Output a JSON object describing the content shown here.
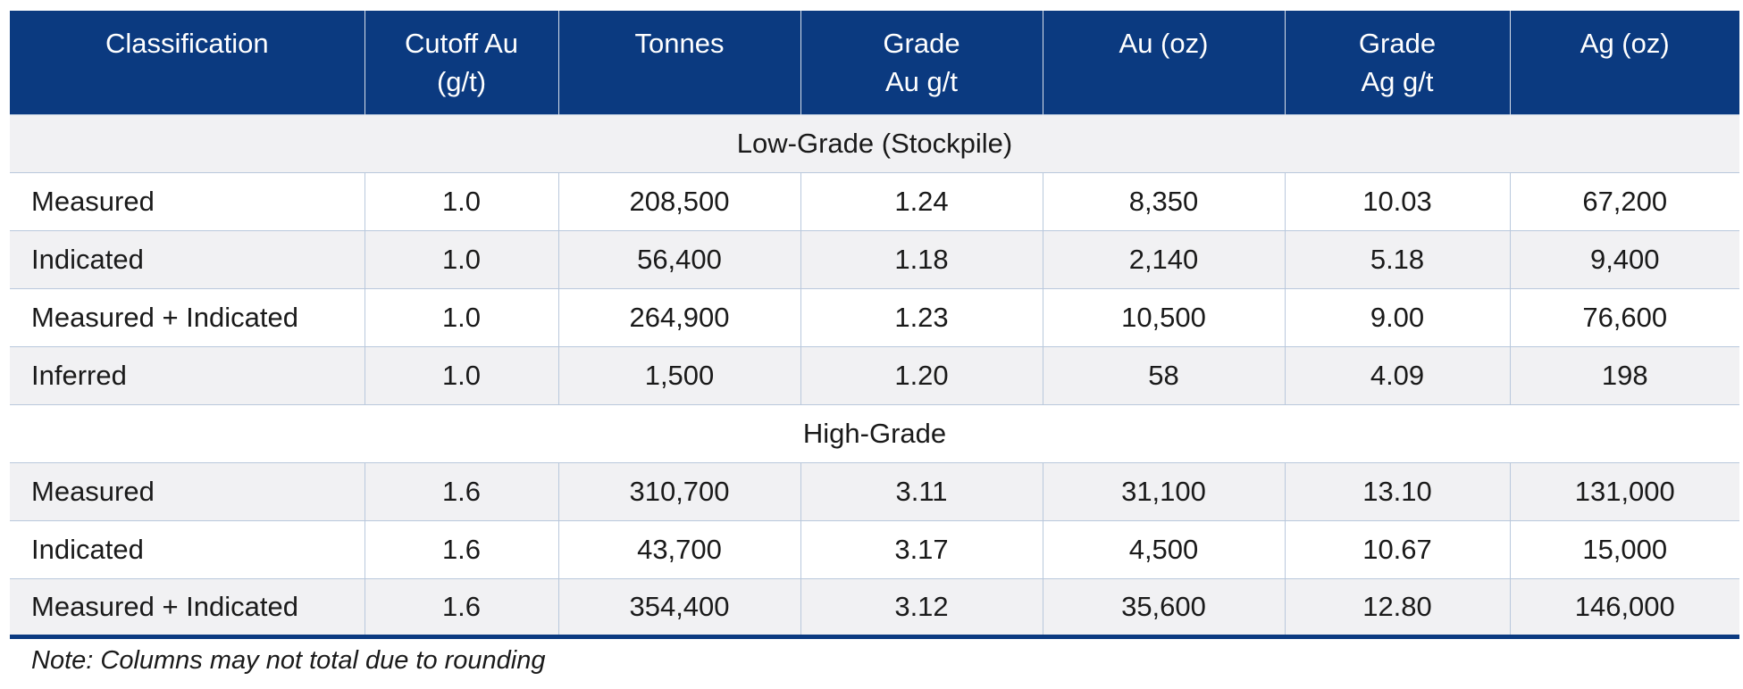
{
  "table": {
    "headers": [
      [
        "Classification"
      ],
      [
        "Cutoff Au",
        "(g/t)"
      ],
      [
        "Tonnes"
      ],
      [
        "Grade",
        "Au g/t"
      ],
      [
        "Au (oz)"
      ],
      [
        "Grade",
        "Ag g/t"
      ],
      [
        "Ag (oz)"
      ]
    ],
    "sections": [
      {
        "title": "Low-Grade (Stockpile)",
        "rows": [
          [
            "Measured",
            "1.0",
            "208,500",
            "1.24",
            "8,350",
            "10.03",
            "67,200"
          ],
          [
            "Indicated",
            "1.0",
            "56,400",
            "1.18",
            "2,140",
            "5.18",
            "9,400"
          ],
          [
            "Measured + Indicated",
            "1.0",
            "264,900",
            "1.23",
            "10,500",
            "9.00",
            "76,600"
          ],
          [
            "Inferred",
            "1.0",
            "1,500",
            "1.20",
            "58",
            "4.09",
            "198"
          ]
        ]
      },
      {
        "title": "High-Grade",
        "rows": [
          [
            "Measured",
            "1.6",
            "310,700",
            "3.11",
            "31,100",
            "13.10",
            "131,000"
          ],
          [
            "Indicated",
            "1.6",
            "43,700",
            "3.17",
            "4,500",
            "10.67",
            "15,000"
          ],
          [
            "Measured + Indicated",
            "1.6",
            "354,400",
            "3.12",
            "35,600",
            "12.80",
            "146,000"
          ]
        ]
      }
    ],
    "note": "Note:  Columns may not total due to rounding"
  }
}
